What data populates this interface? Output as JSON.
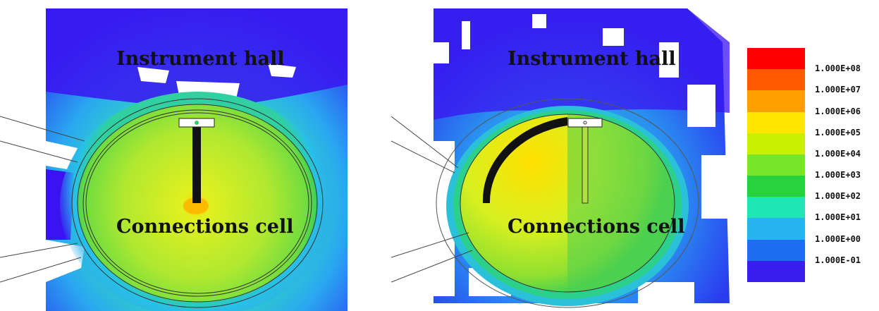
{
  "panels": [
    {
      "name": "left",
      "top_label": "Instrument hall",
      "bottom_label": "Connections cell"
    },
    {
      "name": "right",
      "top_label": "Instrument hall",
      "bottom_label": "Connections cell"
    }
  ],
  "legend": {
    "scale": "logarithmic",
    "colors": [
      "#ff0000",
      "#ff5a00",
      "#ffa000",
      "#ffe600",
      "#c8f000",
      "#78e628",
      "#28d23c",
      "#1ee6b4",
      "#28b4f0",
      "#1e6ef0",
      "#3a1ef0"
    ],
    "labels": [
      "1.000E+08",
      "1.000E+07",
      "1.000E+06",
      "1.000E+05",
      "1.000E+04",
      "1.000E+03",
      "1.000E+02",
      "1.000E+01",
      "1.000E+00",
      "1.000E-01"
    ]
  },
  "field_colors": {
    "low": "#3a14f0",
    "mid_low": "#2ab8ee",
    "mid": "#2cd08a",
    "high": "#b8ee20",
    "peak": "#ffe000",
    "shield": "#111111"
  }
}
